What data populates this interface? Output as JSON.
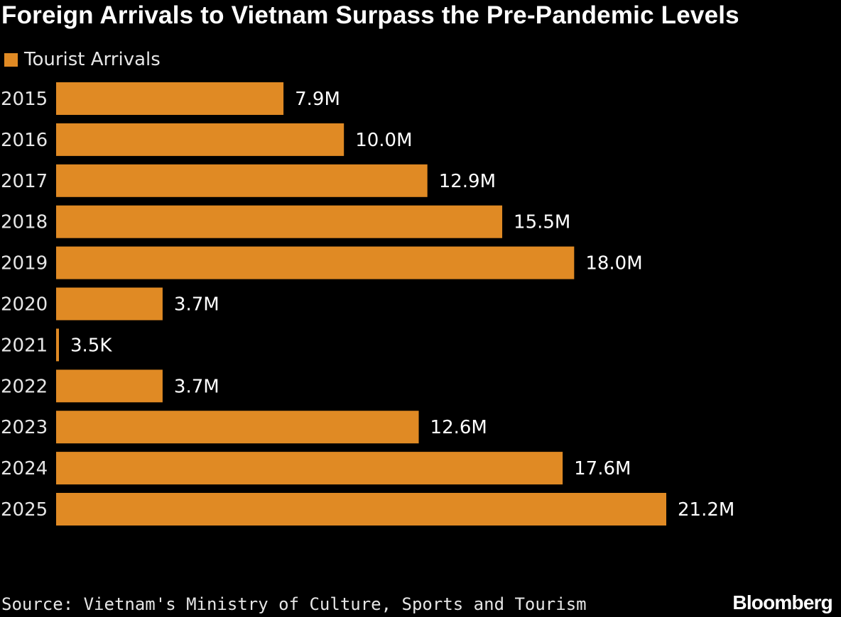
{
  "colors": {
    "background": "#000000",
    "bar": "#E08A24",
    "text": "#FFFFFF"
  },
  "chart_data": {
    "type": "bar",
    "orientation": "horizontal",
    "title": "Foreign Arrivals to Vietnam Surpass the Pre-Pandemic Levels",
    "legend": [
      "Tourist Arrivals"
    ],
    "categories": [
      "2015",
      "2016",
      "2017",
      "2018",
      "2019",
      "2020",
      "2021",
      "2022",
      "2023",
      "2024",
      "2025"
    ],
    "series": [
      {
        "name": "Tourist Arrivals",
        "values": [
          7.9,
          10.0,
          12.9,
          15.5,
          18.0,
          3.7,
          0.0035,
          3.7,
          12.6,
          17.6,
          21.2
        ],
        "labels": [
          "7.9M",
          "10.0M",
          "12.9M",
          "15.5M",
          "18.0M",
          "3.7M",
          "3.5K",
          "3.7M",
          "12.6M",
          "17.6M",
          "21.2M"
        ],
        "unit": "millions"
      }
    ],
    "xlim": [
      0,
      25
    ],
    "xlabel": "",
    "ylabel": "",
    "grid": false,
    "legend_position": "top-left"
  },
  "footer": {
    "source": "Source: Vietnam's Ministry of Culture, Sports and Tourism",
    "brand": "Bloomberg"
  }
}
